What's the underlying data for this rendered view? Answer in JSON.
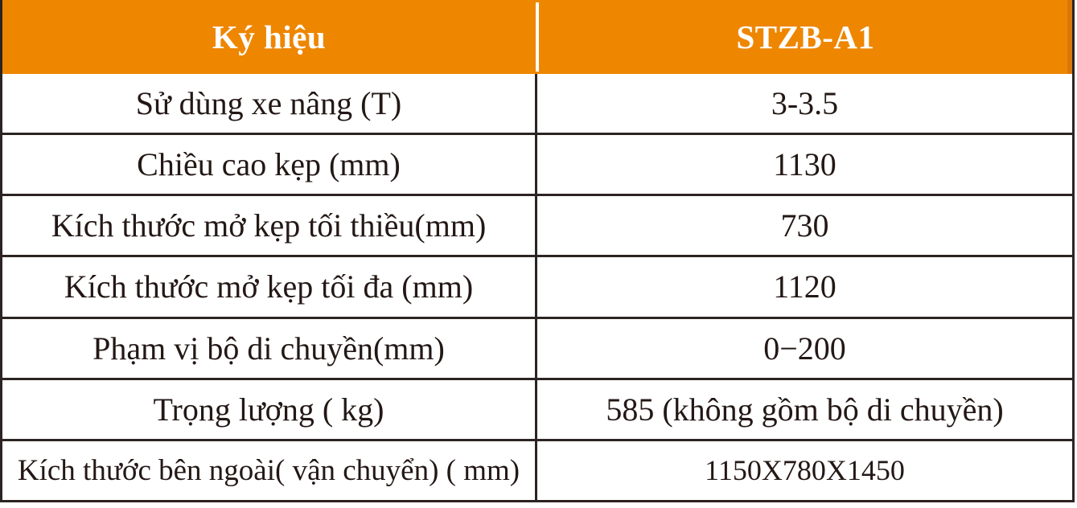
{
  "table": {
    "header": {
      "label_col": "Ký hiệu",
      "value_col": "STZB-A1"
    },
    "rows": [
      {
        "label": "Sử dùng xe nâng (T)",
        "value": "3-3.5"
      },
      {
        "label": "Chiều cao kẹp (mm)",
        "value": "1130"
      },
      {
        "label": "Kích thước mở kẹp tối thiều(mm)",
        "value": "730"
      },
      {
        "label": "Kích thước mở kẹp tối đa (mm)",
        "value": "1120"
      },
      {
        "label": "Phạm vị bộ di chuyền(mm)",
        "value": "0−200"
      },
      {
        "label": "Trọng lượng ( kg)",
        "value": "585 (không gồm bộ di chuyền)"
      },
      {
        "label": "Kích thước bên ngoài( vận chuyển) ( mm)",
        "value": "1150X780X1450"
      }
    ]
  },
  "colors": {
    "header_bg": "#EE8600",
    "header_edge": "#D9780A",
    "header_text": "#FFFFFF",
    "header_divider": "#FFFFFF",
    "border": "#2B2422",
    "text": "#231815",
    "background": "#FFFFFF"
  }
}
